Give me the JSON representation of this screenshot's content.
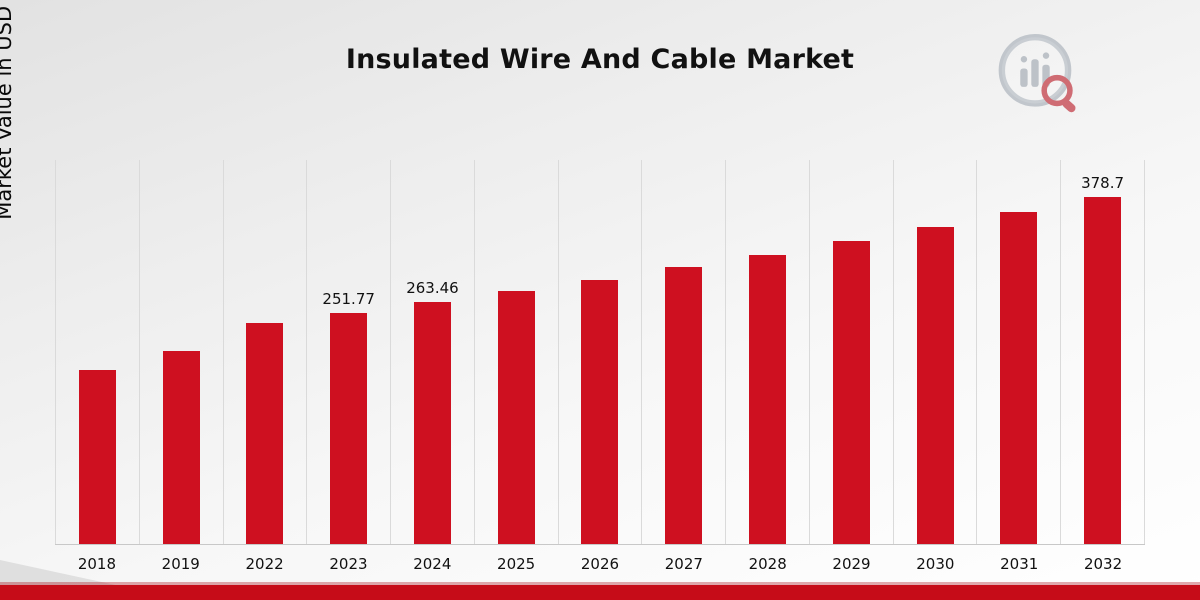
{
  "chart_data": {
    "type": "bar",
    "title": "Insulated Wire And Cable Market",
    "xlabel": "",
    "ylabel": "Market Value in USD Billion",
    "ylim": [
      0,
      420
    ],
    "grid": "vertical",
    "legend": "none",
    "bar_color": "#ce1020",
    "categories": [
      "2018",
      "2019",
      "2022",
      "2023",
      "2024",
      "2025",
      "2026",
      "2027",
      "2028",
      "2029",
      "2030",
      "2031",
      "2032"
    ],
    "values": [
      190.0,
      211.0,
      241.5,
      251.77,
      263.46,
      275.7,
      288.4,
      301.8,
      315.8,
      330.4,
      345.8,
      361.8,
      378.7
    ],
    "data_labels": {
      "2023": "251.77",
      "2024": "263.46",
      "2032": "378.7"
    }
  },
  "branding": {
    "logo_name": "market-research-analytics-logo"
  }
}
